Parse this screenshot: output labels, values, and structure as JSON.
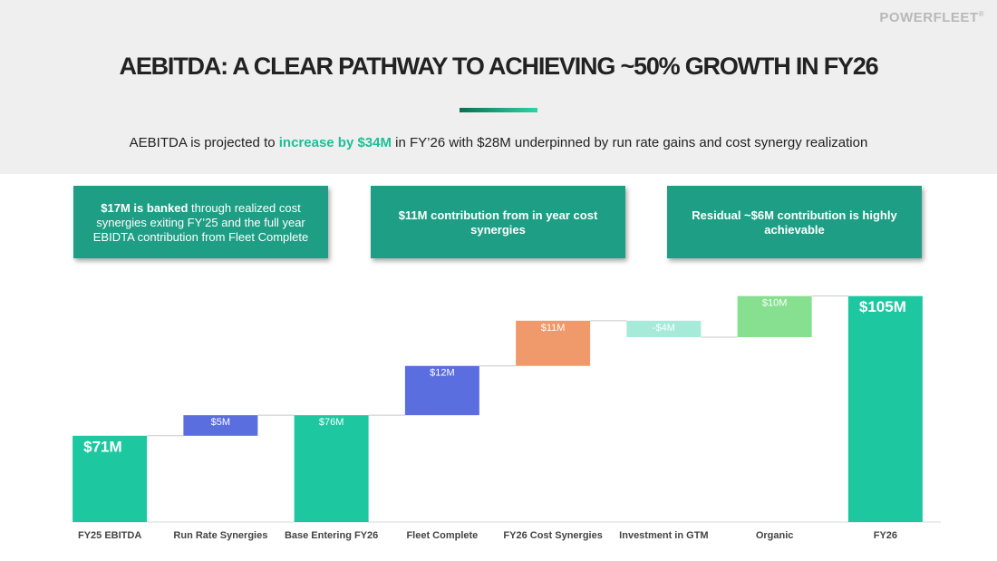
{
  "header": {
    "logo": "POWERFLEET",
    "logo_mark": "®",
    "title": "AEBITDA: A CLEAR PATHWAY TO ACHIEVING ~50% GROWTH IN FY26",
    "subtitle": [
      "AEBITDA is projected to ",
      "increase by $34M",
      " in FY’26 with $28M underpinned by run rate gains and cost synergy realization"
    ]
  },
  "callouts": [
    {
      "bold": "$17M is banked",
      "text": " through realized cost synergies exiting FY’25 and the full year EBIDTA contribution from Fleet Complete"
    },
    {
      "bold": "$11M contribution from in year cost synergies",
      "text": ""
    },
    {
      "bold": "Residual ~$6M contribution is highly achievable",
      "text": ""
    }
  ],
  "chart_data": {
    "type": "waterfall",
    "categories": [
      "FY25 EBITDA",
      "Run Rate Synergies",
      "Base Entering FY26",
      "Fleet Complete",
      "FY26 Cost Synergies",
      "Investment in GTM",
      "Organic",
      "FY26"
    ],
    "values": [
      71,
      5,
      76,
      12,
      11,
      -4,
      10,
      105
    ],
    "value_labels": [
      "$71M",
      "$5M",
      "$76M",
      "$12M",
      "$11M",
      "-$4M",
      "$10M",
      "$105M"
    ],
    "measure": [
      "absolute",
      "relative",
      "absolute",
      "relative",
      "relative",
      "relative",
      "relative",
      "absolute"
    ],
    "colors": [
      "#1dc8a0",
      "#5b6ee0",
      "#1dc8a0",
      "#5b6ee0",
      "#f0996a",
      "#a6ead9",
      "#86e08f",
      "#1dc8a0"
    ],
    "ylim": [
      50,
      110
    ]
  }
}
